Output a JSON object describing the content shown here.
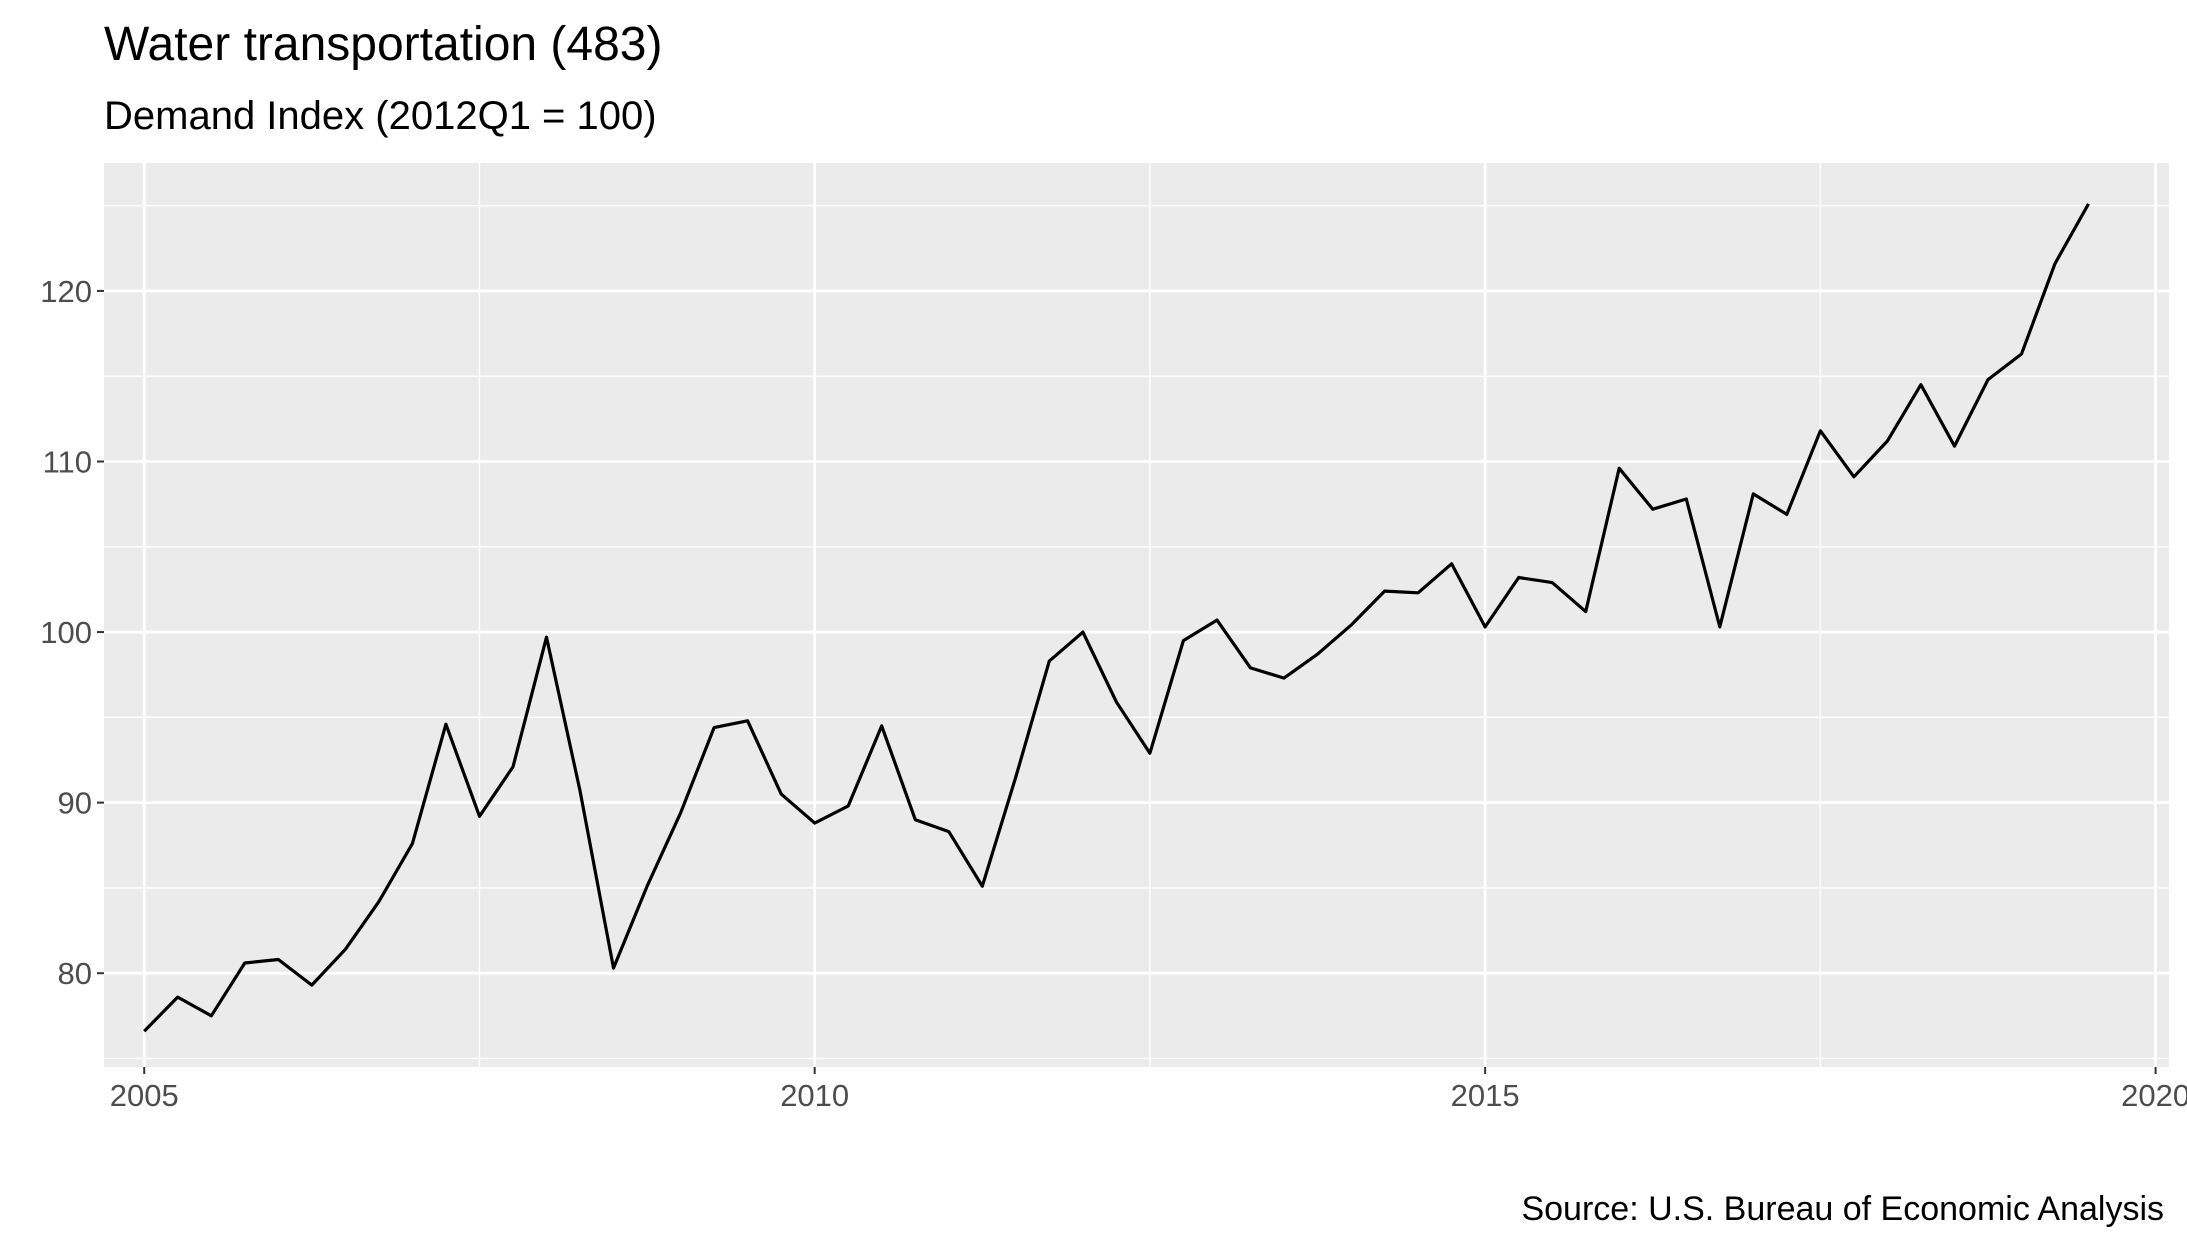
{
  "chart_data": {
    "type": "line",
    "title": "Water transportation (483)",
    "subtitle": "Demand Index (2012Q1 = 100)",
    "caption": "Source: U.S. Bureau of Economic Analysis",
    "xlabel": "",
    "ylabel": "",
    "xlim": [
      2004.7,
      2020.1
    ],
    "ylim": [
      74.5,
      127.5
    ],
    "x_ticks": [
      2005,
      2010,
      2015,
      2020
    ],
    "y_ticks": [
      80,
      90,
      100,
      110,
      120
    ],
    "grid": true,
    "legend": "none",
    "colors": {
      "panel": "#ebebeb",
      "grid": "#ffffff",
      "line": "#000000",
      "tick_text": "#4d4d4d",
      "tick_mark": "#333333"
    },
    "series": [
      {
        "x": [
          2005.0,
          2005.25,
          2005.5,
          2005.75,
          2006.0,
          2006.25,
          2006.5,
          2006.75,
          2007.0,
          2007.25,
          2007.5,
          2007.75,
          2008.0,
          2008.25,
          2008.5,
          2008.75,
          2009.0,
          2009.25,
          2009.5,
          2009.75,
          2010.0,
          2010.25,
          2010.5,
          2010.75,
          2011.0,
          2011.25,
          2011.5,
          2011.75,
          2012.0,
          2012.25,
          2012.5,
          2012.75,
          2013.0,
          2013.25,
          2013.5,
          2013.75,
          2014.0,
          2014.25,
          2014.5,
          2014.75,
          2015.0,
          2015.25,
          2015.5,
          2015.75,
          2016.0,
          2016.25,
          2016.5,
          2016.75,
          2017.0,
          2017.25,
          2017.5,
          2017.75,
          2018.0,
          2018.25,
          2018.5,
          2018.75,
          2019.0,
          2019.25,
          2019.5
        ],
        "values": [
          76.6,
          78.6,
          77.5,
          80.6,
          80.8,
          79.3,
          81.4,
          84.2,
          87.6,
          94.6,
          89.2,
          92.1,
          99.7,
          90.7,
          80.3,
          85.1,
          89.4,
          94.4,
          94.8,
          90.5,
          88.8,
          89.8,
          94.5,
          89.0,
          88.3,
          85.1,
          91.5,
          98.3,
          100.0,
          95.9,
          92.9,
          99.5,
          100.7,
          97.9,
          97.3,
          98.7,
          100.4,
          102.4,
          102.3,
          104.0,
          100.3,
          103.2,
          102.9,
          101.2,
          109.6,
          107.2,
          107.8,
          100.3,
          108.1,
          106.9,
          111.8,
          109.1,
          111.2,
          114.5,
          110.9,
          114.8,
          116.3,
          121.6,
          125.1
        ]
      }
    ]
  }
}
